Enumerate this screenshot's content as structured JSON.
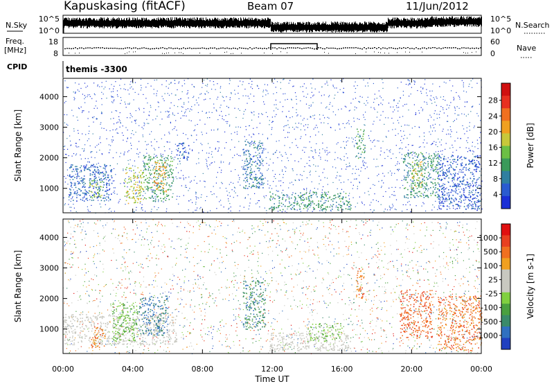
{
  "header": {
    "station": "Kapuskasing (fitACF)",
    "beam": "Beam 07",
    "date": "11/Jun/2012"
  },
  "top_panels": {
    "nsky_label": "N.Sky",
    "nsearch_label": "N.Search",
    "nsky_ticks": [
      "10^5",
      "10^0"
    ],
    "nsearch_ticks": [
      "10^5",
      "10^0"
    ],
    "freq_label": "Freq.",
    "freq_unit": "[MHz]",
    "freq_ticks": [
      "18",
      "8"
    ],
    "nave_label": "Nave",
    "nave_ticks": [
      "60",
      "0"
    ],
    "cpid_label": "CPID",
    "cpid_value": "themis -3300"
  },
  "chart_data": [
    {
      "type": "heatmap",
      "name": "power-panel",
      "ylabel": "Slant Range [km]",
      "xlabel": "Time UT",
      "y_ticks": [
        "1000",
        "2000",
        "3000",
        "4000"
      ],
      "ylim": [
        200,
        4600
      ],
      "colorbar": {
        "label": "Power [dB]",
        "ticks": [
          "4",
          "8",
          "12",
          "16",
          "20",
          "24",
          "28"
        ],
        "colors": [
          "#1a2fd6",
          "#2a5bd0",
          "#2f7fa0",
          "#3a9a5a",
          "#6cbf45",
          "#c8c83a",
          "#f0a020",
          "#f07020",
          "#e83020",
          "#d01010"
        ]
      },
      "blobs": [
        {
          "t0": 0.3,
          "t1": 2.8,
          "r0": 600,
          "r1": 1800,
          "level": 0.15
        },
        {
          "t0": 1.5,
          "t1": 2.3,
          "r0": 700,
          "r1": 1300,
          "level": 0.45
        },
        {
          "t0": 3.5,
          "t1": 4.6,
          "r0": 500,
          "r1": 1700,
          "level": 0.55
        },
        {
          "t0": 4.6,
          "t1": 6.3,
          "r0": 600,
          "r1": 2100,
          "level": 0.35
        },
        {
          "t0": 5.2,
          "t1": 5.9,
          "r0": 900,
          "r1": 1900,
          "level": 0.7
        },
        {
          "t0": 6.5,
          "t1": 7.2,
          "r0": 1900,
          "r1": 2500,
          "level": 0.1
        },
        {
          "t0": 10.3,
          "t1": 11.5,
          "r0": 1000,
          "r1": 2600,
          "level": 0.2
        },
        {
          "t0": 11.8,
          "t1": 16.5,
          "r0": 300,
          "r1": 900,
          "level": 0.3
        },
        {
          "t0": 16.8,
          "t1": 17.3,
          "r0": 2000,
          "r1": 3000,
          "level": 0.35
        },
        {
          "t0": 19.5,
          "t1": 21.5,
          "r0": 700,
          "r1": 2200,
          "level": 0.3
        },
        {
          "t0": 20.0,
          "t1": 20.6,
          "r0": 1000,
          "r1": 1900,
          "level": 0.55
        },
        {
          "t0": 21.5,
          "t1": 24.0,
          "r0": 300,
          "r1": 2100,
          "level": 0.1
        }
      ]
    },
    {
      "type": "heatmap",
      "name": "velocity-panel",
      "ylabel": "Slant Range [km]",
      "xlabel": "Time UT",
      "y_ticks": [
        "1000",
        "2000",
        "3000",
        "4000"
      ],
      "ylim": [
        200,
        4600
      ],
      "x_ticks": [
        "00:00",
        "04:00",
        "08:00",
        "12:00",
        "16:00",
        "20:00",
        "00:00"
      ],
      "xlim": [
        0,
        24
      ],
      "colorbar": {
        "label": "Velocity [m s-1]",
        "ticks": [
          "1000",
          "500",
          "100",
          "25",
          "-25",
          "-100",
          "-500",
          "-1000"
        ],
        "colors": [
          "#2040c0",
          "#3070c0",
          "#3a8a6a",
          "#4aa040",
          "#80d040",
          "#c8c8c0",
          "#c8c8c0",
          "#f0a020",
          "#f07020",
          "#e84020",
          "#e01010"
        ]
      },
      "blobs": [
        {
          "t0": 0.0,
          "t1": 6.5,
          "r0": 500,
          "r1": 1500,
          "level": 0.55
        },
        {
          "t0": 1.6,
          "t1": 2.4,
          "r0": 400,
          "r1": 1100,
          "level": 0.8
        },
        {
          "t0": 2.8,
          "t1": 4.3,
          "r0": 600,
          "r1": 1900,
          "level": 0.35
        },
        {
          "t0": 4.3,
          "t1": 6.0,
          "r0": 800,
          "r1": 2100,
          "level": 0.15
        },
        {
          "t0": 10.3,
          "t1": 11.6,
          "r0": 1000,
          "r1": 2600,
          "level": 0.2
        },
        {
          "t0": 11.8,
          "t1": 16.5,
          "r0": 300,
          "r1": 900,
          "level": 0.55
        },
        {
          "t0": 14.0,
          "t1": 16.0,
          "r0": 600,
          "r1": 1200,
          "level": 0.4
        },
        {
          "t0": 16.8,
          "t1": 17.3,
          "r0": 2000,
          "r1": 3000,
          "level": 0.8
        },
        {
          "t0": 19.3,
          "t1": 21.2,
          "r0": 700,
          "r1": 2300,
          "level": 0.85
        },
        {
          "t0": 21.5,
          "t1": 24.0,
          "r0": 300,
          "r1": 2100,
          "level": 0.8
        }
      ]
    }
  ]
}
